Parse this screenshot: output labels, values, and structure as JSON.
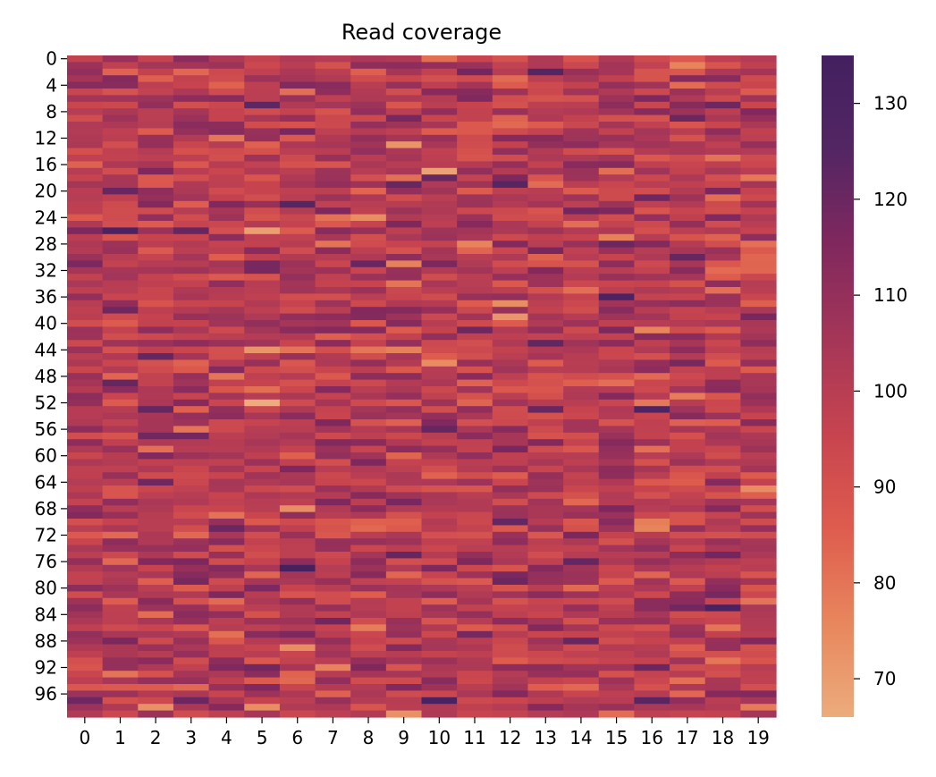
{
  "chart_data": {
    "type": "heatmap",
    "title": "Read coverage",
    "xlabel": "",
    "ylabel": "",
    "n_rows": 100,
    "n_cols": 20,
    "x_tick_labels": [
      "0",
      "1",
      "2",
      "3",
      "4",
      "5",
      "6",
      "7",
      "8",
      "9",
      "10",
      "11",
      "12",
      "13",
      "14",
      "15",
      "16",
      "17",
      "18",
      "19"
    ],
    "y_tick_labels": [
      "0",
      "4",
      "8",
      "12",
      "16",
      "20",
      "24",
      "28",
      "32",
      "36",
      "40",
      "44",
      "48",
      "52",
      "56",
      "60",
      "64",
      "68",
      "72",
      "76",
      "80",
      "84",
      "88",
      "92",
      "96"
    ],
    "y_tick_rows": [
      0,
      4,
      8,
      12,
      16,
      20,
      24,
      28,
      32,
      36,
      40,
      44,
      48,
      52,
      56,
      60,
      64,
      68,
      72,
      76,
      80,
      84,
      88,
      92,
      96
    ],
    "colorbar": {
      "range": [
        66,
        135
      ],
      "tick_values": [
        70,
        80,
        90,
        100,
        110,
        120,
        130
      ],
      "tick_labels": [
        "70",
        "80",
        "90",
        "100",
        "110",
        "120",
        "130"
      ],
      "colormap": "flare",
      "colors": [
        "#ecac7c",
        "#e8865d",
        "#de5c4e",
        "#c7444f",
        "#a53658",
        "#80285e",
        "#532663",
        "#432060"
      ]
    },
    "value_mean": 100,
    "value_spread": 9,
    "values_note": "",
    "highlight_cells": [
      {
        "row": 13,
        "col": 9,
        "value": 72
      },
      {
        "row": 26,
        "col": 1,
        "value": 130
      },
      {
        "row": 44,
        "col": 5,
        "value": 72
      },
      {
        "row": 77,
        "col": 6,
        "value": 134
      },
      {
        "row": 89,
        "col": 6,
        "value": 74
      },
      {
        "row": 98,
        "col": 5,
        "value": 74
      },
      {
        "row": 99,
        "col": 9,
        "value": 73
      },
      {
        "row": 83,
        "col": 18,
        "value": 131
      },
      {
        "row": 97,
        "col": 10,
        "value": 131
      },
      {
        "row": 37,
        "col": 12,
        "value": 74
      },
      {
        "row": 39,
        "col": 12,
        "value": 72
      },
      {
        "row": 27,
        "col": 15,
        "value": 77
      },
      {
        "row": 2,
        "col": 13,
        "value": 126
      },
      {
        "row": 34,
        "col": 9,
        "value": 80
      },
      {
        "row": 86,
        "col": 8,
        "value": 78
      }
    ]
  }
}
